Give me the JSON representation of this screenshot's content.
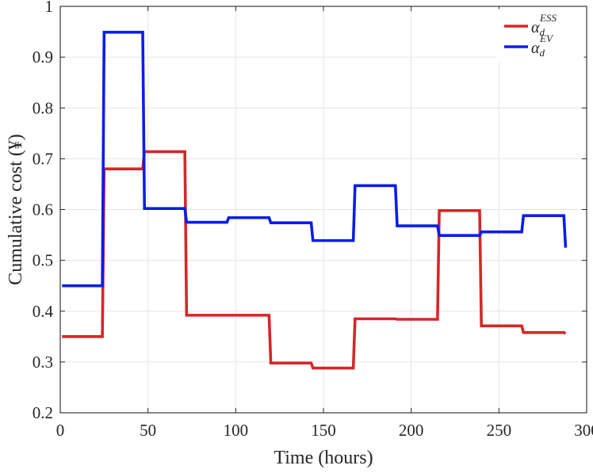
{
  "chart_data": {
    "type": "line",
    "title": "",
    "xlabel": "Time (hours)",
    "ylabel": "Cumulative cost (¥)",
    "xlim": [
      0,
      300
    ],
    "ylim": [
      0.2,
      1.0
    ],
    "xticks": [
      0,
      50,
      100,
      150,
      200,
      250,
      300
    ],
    "yticks": [
      0.2,
      0.3,
      0.4,
      0.5,
      0.6,
      0.7,
      0.8,
      0.9,
      1.0
    ],
    "xtick_labels": [
      "0",
      "50",
      "100",
      "150",
      "200",
      "250",
      "300"
    ],
    "ytick_labels": [
      "0.2",
      "0.3",
      "0.4",
      "0.5",
      "0.6",
      "0.7",
      "0.8",
      "0.9",
      "1"
    ],
    "grid": true,
    "legend_position": "top-right",
    "series": [
      {
        "name": "α_d^ESS",
        "legend_base": "α",
        "legend_sub": "d",
        "legend_sup": "ESS",
        "color": "#d62728",
        "points": [
          [
            1,
            0.35
          ],
          [
            24,
            0.35
          ],
          [
            25,
            0.68
          ],
          [
            47,
            0.68
          ],
          [
            48,
            0.714
          ],
          [
            71,
            0.714
          ],
          [
            72,
            0.392
          ],
          [
            96,
            0.392
          ],
          [
            119,
            0.392
          ],
          [
            120,
            0.298
          ],
          [
            143,
            0.298
          ],
          [
            144,
            0.288
          ],
          [
            167,
            0.288
          ],
          [
            168,
            0.385
          ],
          [
            191,
            0.385
          ],
          [
            192,
            0.384
          ],
          [
            215,
            0.384
          ],
          [
            216,
            0.598
          ],
          [
            239,
            0.598
          ],
          [
            240,
            0.371
          ],
          [
            263,
            0.371
          ],
          [
            264,
            0.358
          ],
          [
            287,
            0.358
          ],
          [
            288,
            0.356
          ]
        ]
      },
      {
        "name": "α_d^EV",
        "legend_base": "α",
        "legend_sub": "d",
        "legend_sup": "EV",
        "color": "#0a1ee8",
        "points": [
          [
            1,
            0.45
          ],
          [
            24,
            0.45
          ],
          [
            25,
            0.949
          ],
          [
            47,
            0.949
          ],
          [
            48,
            0.602
          ],
          [
            71,
            0.602
          ],
          [
            72,
            0.575
          ],
          [
            95,
            0.575
          ],
          [
            96,
            0.584
          ],
          [
            119,
            0.584
          ],
          [
            120,
            0.574
          ],
          [
            143,
            0.574
          ],
          [
            144,
            0.539
          ],
          [
            167,
            0.539
          ],
          [
            168,
            0.647
          ],
          [
            191,
            0.647
          ],
          [
            192,
            0.568
          ],
          [
            215,
            0.568
          ],
          [
            216,
            0.549
          ],
          [
            239,
            0.549
          ],
          [
            240,
            0.556
          ],
          [
            263,
            0.556
          ],
          [
            264,
            0.588
          ],
          [
            287,
            0.588
          ],
          [
            288,
            0.525
          ]
        ]
      }
    ]
  }
}
